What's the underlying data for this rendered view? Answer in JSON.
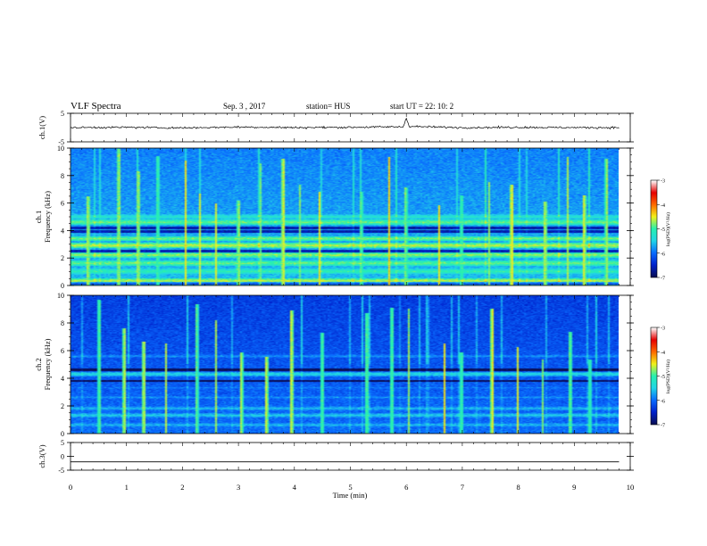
{
  "header": {
    "title": "VLF Spectra",
    "date": "Sep. 3 , 2017",
    "station": "station= HUS",
    "start": "start UT = 22: 10: 2"
  },
  "colors": {
    "background": "#ffffff",
    "axes": "#000000",
    "trace": "#000000",
    "colormap": [
      "#0a0f55",
      "#0022cc",
      "#0a6cff",
      "#22d5e8",
      "#27f0b0",
      "#f2f21a",
      "#ff6a00",
      "#e60000",
      "#ffffff"
    ]
  },
  "chart_data": [
    {
      "type": "line",
      "panel": "ch1-waveform",
      "ylabel": "ch.1(V)",
      "ylim": [
        -5,
        5
      ],
      "yticks": [
        "5",
        "-5"
      ],
      "x": [
        0,
        1,
        2,
        3,
        4,
        5,
        5.95,
        6,
        6.05,
        7,
        8,
        9,
        9.8
      ],
      "y": [
        0,
        0.1,
        -0.1,
        0.2,
        0,
        0.1,
        0.3,
        3.6,
        0.4,
        0,
        0.1,
        0,
        0
      ],
      "noise_amplitude_V": 0.6
    },
    {
      "type": "heatmap",
      "panel": "ch1-spectrogram",
      "ylabel": "ch.1\nFrequency (kHz)",
      "xlim": [
        0,
        9.8
      ],
      "ylim": [
        0,
        10
      ],
      "yticks": [
        "0",
        "2",
        "4",
        "6",
        "8",
        "10"
      ],
      "colorbar": {
        "label": "log(PSD)(V²/Hz)",
        "range": [
          -7,
          -3
        ],
        "ticks": [
          "-3",
          "-4",
          "-5",
          "-6",
          "-7"
        ]
      },
      "background_level_low": -5.6,
      "background_level_high": -5.9,
      "bands_kHz": [
        {
          "freq": 0.3,
          "level": -4.6
        },
        {
          "freq": 1.0,
          "level": -5.0
        },
        {
          "freq": 1.6,
          "level": -4.8
        },
        {
          "freq": 2.2,
          "level": -4.7
        },
        {
          "freq": 2.9,
          "level": -4.6
        },
        {
          "freq": 3.4,
          "level": -4.8
        },
        {
          "freq": 4.6,
          "level": -4.8
        },
        {
          "freq": 5.0,
          "level": -5.2
        }
      ],
      "dark_bands_kHz": [
        0.15,
        2.5,
        3.9,
        4.2
      ],
      "sferics_min": [
        0.3,
        0.85,
        1.2,
        1.55,
        2.05,
        2.3,
        2.6,
        3.0,
        3.4,
        3.8,
        4.1,
        4.45,
        5.2,
        5.7,
        6.0,
        6.6,
        7.0,
        7.5,
        7.9,
        8.5,
        8.9,
        9.2,
        9.6
      ]
    },
    {
      "type": "heatmap",
      "panel": "ch2-spectrogram",
      "ylabel": "ch.2\nFrequency (kHz)",
      "xlim": [
        0,
        9.8
      ],
      "ylim": [
        0,
        10
      ],
      "yticks": [
        "0",
        "2",
        "4",
        "6",
        "8",
        "10"
      ],
      "colorbar": {
        "label": "log(PSD)(V²/Hz)",
        "range": [
          -7,
          -3
        ],
        "ticks": [
          "-3",
          "-4",
          "-5",
          "-6",
          "-7"
        ]
      },
      "background_level_low": -6.0,
      "background_level_high": -6.3,
      "bands_kHz": [
        {
          "freq": 0.6,
          "level": -5.6
        },
        {
          "freq": 1.3,
          "level": -5.5
        },
        {
          "freq": 1.8,
          "level": -5.6
        },
        {
          "freq": 2.6,
          "level": -5.8
        },
        {
          "freq": 3.3,
          "level": -5.9
        },
        {
          "freq": 4.3,
          "level": -5.4
        },
        {
          "freq": 5.6,
          "level": -5.8
        }
      ],
      "dark_bands_kHz": [
        3.8,
        4.6
      ],
      "sferics_min": [
        0.5,
        0.95,
        1.3,
        1.7,
        2.25,
        2.6,
        3.05,
        3.5,
        3.95,
        4.5,
        5.3,
        5.75,
        6.05,
        6.7,
        7.0,
        7.55,
        8.0,
        8.45,
        8.95,
        9.3
      ]
    },
    {
      "type": "line",
      "panel": "ch3-waveform",
      "ylabel": "ch.3(V)",
      "ylim": [
        -5,
        5
      ],
      "yticks": [
        "5",
        "0",
        "-5"
      ],
      "x": [
        0,
        9.8
      ],
      "y": [
        -2,
        -2
      ]
    }
  ],
  "xaxis": {
    "label": "Time (min)",
    "xlim": [
      0,
      10
    ],
    "ticks": [
      "0",
      "1",
      "2",
      "3",
      "4",
      "5",
      "6",
      "7",
      "8",
      "9",
      "10"
    ]
  }
}
